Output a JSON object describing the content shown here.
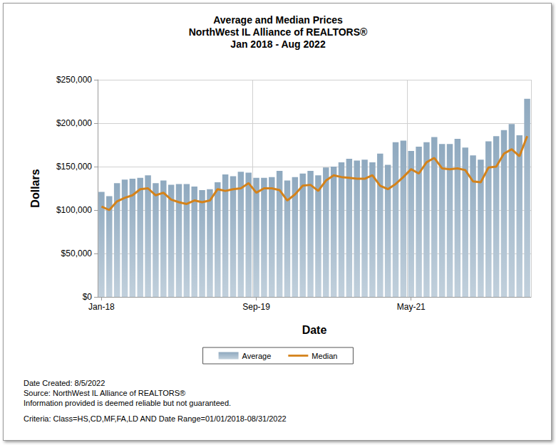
{
  "chart_data": {
    "type": "bar",
    "title": "Average and Median Prices",
    "subtitle": [
      "NorthWest IL Alliance of REALTORS®",
      "Jan 2018 - Aug 2022"
    ],
    "x_label": "Date",
    "y_label": "Dollars",
    "categories": [
      "Jan-18",
      null,
      null,
      null,
      null,
      null,
      null,
      null,
      null,
      null,
      null,
      null,
      null,
      null,
      null,
      null,
      null,
      null,
      null,
      null,
      "Sep-19",
      null,
      null,
      null,
      null,
      null,
      null,
      null,
      null,
      null,
      null,
      null,
      null,
      null,
      null,
      null,
      null,
      null,
      null,
      null,
      "May-21",
      null,
      null,
      null,
      null,
      null,
      null,
      null,
      null,
      null,
      null,
      null,
      null,
      null,
      null,
      null
    ],
    "series": [
      {
        "name": "Average",
        "type": "bar",
        "color": "#8fa9bf",
        "values": [
          121000,
          116000,
          131000,
          135000,
          136000,
          137000,
          140000,
          131000,
          134000,
          129000,
          130000,
          130000,
          127000,
          123000,
          124000,
          132000,
          141000,
          139000,
          144000,
          143000,
          137000,
          137000,
          138000,
          145000,
          134000,
          138000,
          142000,
          145000,
          140000,
          149000,
          150000,
          155000,
          159000,
          157000,
          158000,
          155000,
          165000,
          152000,
          178000,
          180000,
          168000,
          173000,
          178000,
          184000,
          176000,
          176000,
          182000,
          172000,
          163000,
          158000,
          179000,
          185000,
          192000,
          199000,
          186000,
          228000
        ]
      },
      {
        "name": "Median",
        "type": "line",
        "color": "#d4821a",
        "values": [
          104000,
          100000,
          110000,
          114000,
          117000,
          124000,
          125000,
          117000,
          120000,
          112000,
          109000,
          107000,
          111000,
          109000,
          111000,
          124000,
          122000,
          124000,
          125000,
          131000,
          120000,
          125000,
          125000,
          123000,
          111000,
          118000,
          128000,
          129000,
          122000,
          134000,
          140000,
          138000,
          137000,
          136000,
          136000,
          140000,
          128000,
          124000,
          130000,
          138000,
          147000,
          142000,
          155000,
          160000,
          148000,
          147000,
          148000,
          146000,
          133000,
          132000,
          149000,
          150000,
          165000,
          170000,
          162000,
          185000
        ]
      }
    ],
    "ylim": [
      0,
      250000
    ],
    "yticks": [
      {
        "value": 0,
        "label": "$0"
      },
      {
        "value": 50000,
        "label": "$50,000"
      },
      {
        "value": 100000,
        "label": "$100,000"
      },
      {
        "value": 150000,
        "label": "$150,000"
      },
      {
        "value": 200000,
        "label": "$200,000"
      },
      {
        "value": 250000,
        "label": "$250,000"
      }
    ],
    "grid": true,
    "legend": "bottom",
    "notes": [
      "Date Created: 8/5/2022",
      "Source: NorthWest IL Alliance of REALTORS®",
      "Information provided is deemed reliable but not guaranteed.",
      "Criteria: Class=HS,CD,MF,FA,LD AND Date Range=01/01/2018-08/31/2022"
    ]
  }
}
